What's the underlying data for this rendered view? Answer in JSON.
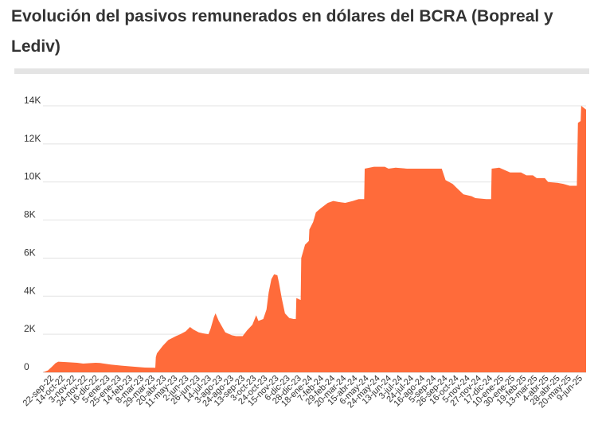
{
  "title": "Evolución del pasivos remunerados en dólares del BCRA (Bopreal y Lediv)",
  "chart_data": {
    "type": "area",
    "title": "Evolución del pasivos remunerados en dólares del BCRA (Bopreal y Lediv)",
    "xlabel": "",
    "ylabel": "",
    "ylim": [
      0,
      14000
    ],
    "grid": true,
    "color": "#ff6b3a",
    "y_ticks": [
      {
        "value": 0,
        "label": "0"
      },
      {
        "value": 2000,
        "label": "2K"
      },
      {
        "value": 4000,
        "label": "4K"
      },
      {
        "value": 6000,
        "label": "6K"
      },
      {
        "value": 8000,
        "label": "8K"
      },
      {
        "value": 10000,
        "label": "10K"
      },
      {
        "value": 12000,
        "label": "12K"
      },
      {
        "value": 14000,
        "label": "14K"
      }
    ],
    "x_ticks": [
      "22-sep-22",
      "14-oct-22",
      "3-nov-22",
      "24-nov-22",
      "16-dic-22",
      "5-ene-23",
      "25-ene-23",
      "14-feb-23",
      "8-mar-23",
      "29-mar-23",
      "20-abr-23",
      "11-may-23",
      "2-jun-23",
      "26-jun-23",
      "14-jul-23",
      "3-ago-23",
      "24-ago-23",
      "13-sep-23",
      "3-oct-23",
      "24-oct-23",
      "15-nov-23",
      "6-dic-23",
      "28-dic-23",
      "18-ene-24",
      "7-feb-24",
      "29-feb-24",
      "20-mar-24",
      "15-abr-24",
      "6-may-24",
      "24-may-24",
      "13-jun-24",
      "3-jul-24",
      "24-jul-24",
      "16-ago-24",
      "5-sep-24",
      "26-sep-24",
      "16-oct-24",
      "5-nov-24",
      "27-nov-24",
      "17-dic-24",
      "10-ene-25",
      "30-ene-25",
      "19-feb-25",
      "13-mar-25",
      "4-abr-25",
      "28-abr-25",
      "20-may-25",
      "9-jun-25"
    ],
    "x_range": [
      "2022-09-22",
      "2025-06-19"
    ],
    "series": [
      {
        "points": [
          [
            "2022-09-22",
            0
          ],
          [
            "2022-10-01",
            100
          ],
          [
            "2022-10-08",
            280
          ],
          [
            "2022-10-15",
            480
          ],
          [
            "2022-10-20",
            560
          ],
          [
            "2022-11-03",
            540
          ],
          [
            "2022-11-24",
            500
          ],
          [
            "2022-12-05",
            460
          ],
          [
            "2022-12-16",
            480
          ],
          [
            "2022-12-28",
            500
          ],
          [
            "2023-01-05",
            490
          ],
          [
            "2023-01-25",
            410
          ],
          [
            "2023-02-14",
            350
          ],
          [
            "2023-03-08",
            300
          ],
          [
            "2023-03-29",
            250
          ],
          [
            "2023-04-17",
            240
          ],
          [
            "2023-04-18",
            800
          ],
          [
            "2023-04-20",
            1000
          ],
          [
            "2023-05-01",
            1400
          ],
          [
            "2023-05-11",
            1700
          ],
          [
            "2023-05-25",
            1900
          ],
          [
            "2023-06-02",
            2000
          ],
          [
            "2023-06-12",
            2150
          ],
          [
            "2023-06-20",
            2380
          ],
          [
            "2023-06-26",
            2250
          ],
          [
            "2023-07-06",
            2100
          ],
          [
            "2023-07-14",
            2050
          ],
          [
            "2023-07-24",
            2000
          ],
          [
            "2023-07-28",
            2300
          ],
          [
            "2023-08-03",
            2900
          ],
          [
            "2023-08-06",
            3100
          ],
          [
            "2023-08-12",
            2700
          ],
          [
            "2023-08-24",
            2100
          ],
          [
            "2023-09-05",
            1950
          ],
          [
            "2023-09-13",
            1900
          ],
          [
            "2023-09-25",
            1900
          ],
          [
            "2023-10-03",
            2200
          ],
          [
            "2023-10-13",
            2500
          ],
          [
            "2023-10-20",
            3000
          ],
          [
            "2023-10-24",
            2700
          ],
          [
            "2023-11-02",
            2800
          ],
          [
            "2023-11-08",
            3300
          ],
          [
            "2023-11-12",
            4200
          ],
          [
            "2023-11-17",
            4900
          ],
          [
            "2023-11-22",
            5150
          ],
          [
            "2023-11-28",
            5100
          ],
          [
            "2023-12-01",
            4700
          ],
          [
            "2023-12-06",
            3900
          ],
          [
            "2023-12-12",
            3100
          ],
          [
            "2023-12-20",
            2850
          ],
          [
            "2023-12-28",
            2800
          ],
          [
            "2024-01-01",
            2800
          ],
          [
            "2024-01-02",
            3900
          ],
          [
            "2024-01-10",
            3800
          ],
          [
            "2024-01-11",
            6000
          ],
          [
            "2024-01-18",
            6700
          ],
          [
            "2024-01-25",
            6900
          ],
          [
            "2024-01-26",
            7500
          ],
          [
            "2024-02-02",
            7900
          ],
          [
            "2024-02-07",
            8400
          ],
          [
            "2024-02-15",
            8600
          ],
          [
            "2024-02-29",
            8900
          ],
          [
            "2024-03-10",
            9000
          ],
          [
            "2024-03-20",
            8950
          ],
          [
            "2024-04-01",
            8900
          ],
          [
            "2024-04-15",
            9000
          ],
          [
            "2024-04-26",
            9100
          ],
          [
            "2024-05-06",
            9100
          ],
          [
            "2024-05-07",
            10700
          ],
          [
            "2024-05-24",
            10800
          ],
          [
            "2024-06-13",
            10800
          ],
          [
            "2024-06-20",
            10700
          ],
          [
            "2024-07-03",
            10750
          ],
          [
            "2024-07-24",
            10700
          ],
          [
            "2024-08-16",
            10700
          ],
          [
            "2024-09-05",
            10700
          ],
          [
            "2024-09-26",
            10700
          ],
          [
            "2024-10-03",
            10100
          ],
          [
            "2024-10-16",
            9900
          ],
          [
            "2024-10-25",
            9650
          ],
          [
            "2024-11-05",
            9350
          ],
          [
            "2024-11-20",
            9250
          ],
          [
            "2024-11-27",
            9150
          ],
          [
            "2024-12-17",
            9100
          ],
          [
            "2024-12-26",
            9100
          ],
          [
            "2024-12-27",
            10700
          ],
          [
            "2025-01-10",
            10750
          ],
          [
            "2025-01-30",
            10500
          ],
          [
            "2025-02-19",
            10500
          ],
          [
            "2025-03-01",
            10350
          ],
          [
            "2025-03-13",
            10350
          ],
          [
            "2025-03-20",
            10200
          ],
          [
            "2025-04-04",
            10200
          ],
          [
            "2025-04-10",
            10000
          ],
          [
            "2025-04-28",
            9950
          ],
          [
            "2025-05-08",
            9900
          ],
          [
            "2025-05-20",
            9800
          ],
          [
            "2025-06-02",
            9800
          ],
          [
            "2025-06-04",
            13100
          ],
          [
            "2025-06-09",
            13200
          ],
          [
            "2025-06-10",
            14000
          ],
          [
            "2025-06-19",
            13800
          ]
        ]
      }
    ]
  }
}
